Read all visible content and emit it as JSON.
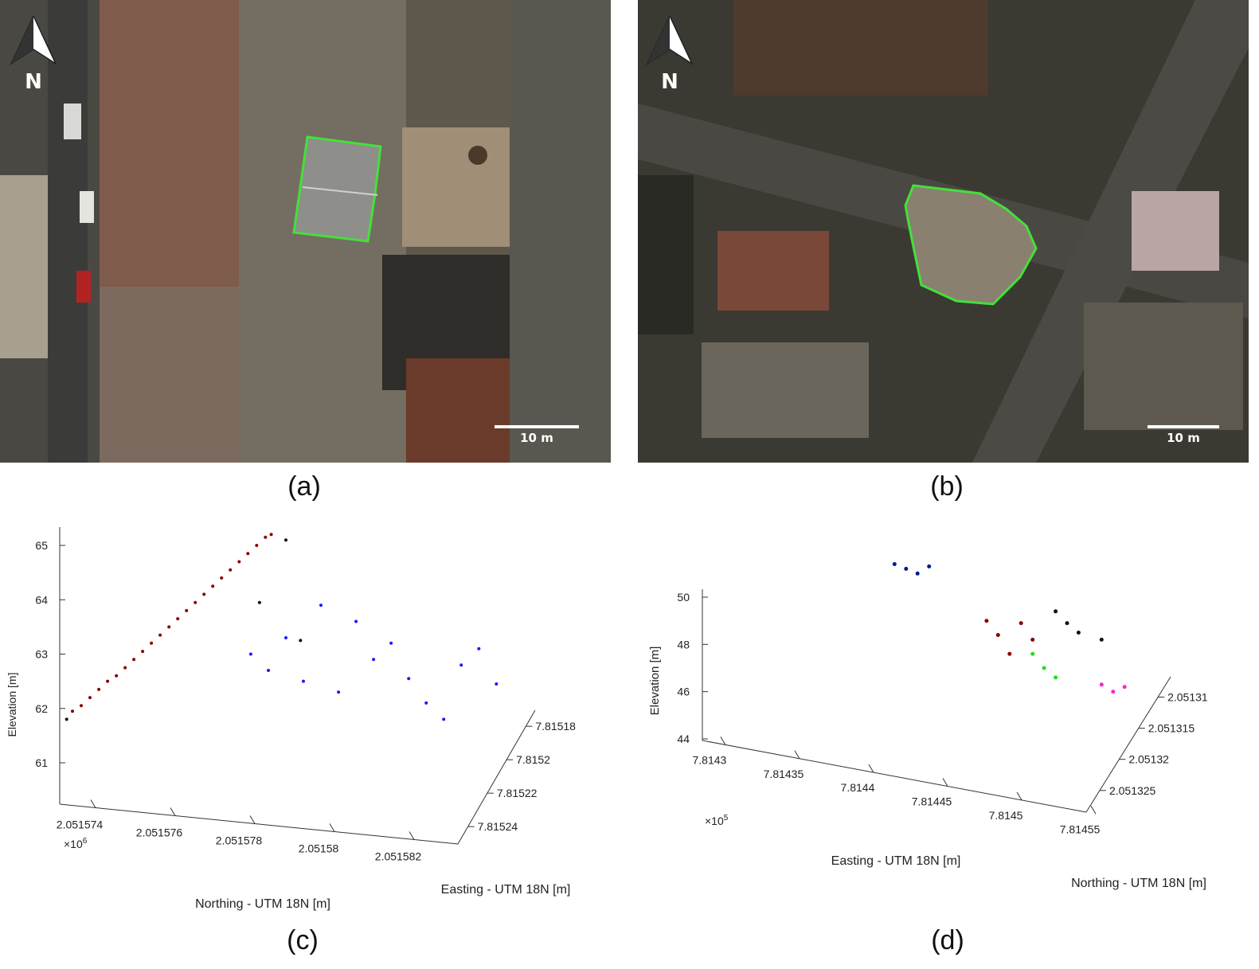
{
  "panels": {
    "a": {
      "caption": "(a)",
      "scale_label": "10 m",
      "north_label": "N"
    },
    "b": {
      "caption": "(b)",
      "scale_label": "10 m",
      "north_label": "N"
    },
    "c": {
      "caption": "(c)"
    },
    "d": {
      "caption": "(d)"
    }
  },
  "colors": {
    "outline": "#44e03a",
    "series_red": "#8b0000",
    "series_blue": "#1a1aff",
    "series_darkblue": "#001a8c",
    "series_green": "#22dd22",
    "series_magenta": "#ff22cc",
    "series_black": "#111111"
  },
  "chart_data": [
    {
      "type": "scatter",
      "panel": "c",
      "zlabel": "Elevation [m]",
      "xlabel": "Northing - UTM 18N [m]",
      "ylabel": "Easting - UTM 18N [m]",
      "z_ticks": [
        "61",
        "62",
        "63",
        "64",
        "65"
      ],
      "x_ticks": [
        "2.051574",
        "2.051576",
        "2.051578",
        "2.05158",
        "2.051582"
      ],
      "x_multiplier": "×10",
      "x_multiplier_exp": "6",
      "y_ticks": [
        "7.81518",
        "7.8152",
        "7.81522",
        "7.81524"
      ],
      "series": [
        {
          "color": "#8b0000",
          "points": [
            [
              2.0515745,
              61.95
            ],
            [
              2.0515748,
              62.05
            ],
            [
              2.0515751,
              62.2
            ],
            [
              2.0515754,
              62.35
            ],
            [
              2.0515757,
              62.5
            ],
            [
              2.051576,
              62.6
            ],
            [
              2.0515763,
              62.75
            ],
            [
              2.0515766,
              62.9
            ],
            [
              2.0515769,
              63.05
            ],
            [
              2.0515772,
              63.2
            ],
            [
              2.0515775,
              63.35
            ],
            [
              2.0515778,
              63.5
            ],
            [
              2.0515781,
              63.65
            ],
            [
              2.0515784,
              63.8
            ],
            [
              2.0515787,
              63.95
            ],
            [
              2.051579,
              64.1
            ],
            [
              2.0515793,
              64.25
            ],
            [
              2.0515796,
              64.4
            ],
            [
              2.0515799,
              64.55
            ],
            [
              2.0515802,
              64.7
            ],
            [
              2.0515805,
              64.85
            ],
            [
              2.0515808,
              65.0
            ],
            [
              2.0515811,
              65.15
            ],
            [
              2.0515813,
              65.2
            ]
          ]
        },
        {
          "color": "#1a1aff",
          "points": [
            [
              2.0515806,
              63.0
            ],
            [
              2.0515812,
              62.7
            ],
            [
              2.0515818,
              63.3
            ],
            [
              2.0515824,
              62.5
            ],
            [
              2.051583,
              63.9
            ],
            [
              2.0515836,
              62.3
            ],
            [
              2.0515842,
              63.6
            ],
            [
              2.0515848,
              62.9
            ],
            [
              2.0515854,
              63.2
            ],
            [
              2.051586,
              62.55
            ],
            [
              2.0515866,
              62.1
            ],
            [
              2.0515872,
              61.8
            ],
            [
              2.0515878,
              62.8
            ],
            [
              2.0515884,
              63.1
            ],
            [
              2.051589,
              62.45
            ]
          ]
        },
        {
          "color": "#111111",
          "points": [
            [
              2.0515743,
              61.8
            ],
            [
              2.0515809,
              63.95
            ],
            [
              2.0515818,
              65.1
            ],
            [
              2.0515823,
              63.25
            ]
          ]
        }
      ]
    },
    {
      "type": "scatter",
      "panel": "d",
      "zlabel": "Elevation [m]",
      "xlabel": "Easting - UTM 18N [m]",
      "ylabel": "Northing - UTM 18N [m]",
      "z_ticks": [
        "44",
        "46",
        "48",
        "50"
      ],
      "x_ticks": [
        "7.8143",
        "7.81435",
        "7.8144",
        "7.81445",
        "7.8145",
        "7.81455"
      ],
      "x_multiplier": "×10",
      "x_multiplier_exp": "5",
      "y_ticks": [
        "2.05131",
        "2.051315",
        "2.05132",
        "2.051325"
      ],
      "series": [
        {
          "color": "#001a8c",
          "points": [
            [
              7.81432,
              51.4
            ],
            [
              7.81433,
              51.2
            ],
            [
              7.81434,
              51.0
            ],
            [
              7.81435,
              51.3
            ]
          ]
        },
        {
          "color": "#8b0000",
          "points": [
            [
              7.8144,
              49.0
            ],
            [
              7.81441,
              48.4
            ],
            [
              7.81442,
              47.6
            ],
            [
              7.81443,
              48.9
            ],
            [
              7.81444,
              48.2
            ]
          ]
        },
        {
          "color": "#111111",
          "points": [
            [
              7.81446,
              49.4
            ],
            [
              7.81447,
              48.9
            ],
            [
              7.81448,
              48.5
            ],
            [
              7.8145,
              48.2
            ]
          ]
        },
        {
          "color": "#22dd22",
          "points": [
            [
              7.81444,
              47.6
            ],
            [
              7.81445,
              47.0
            ],
            [
              7.81446,
              46.6
            ]
          ]
        },
        {
          "color": "#ff22cc",
          "points": [
            [
              7.8145,
              46.3
            ],
            [
              7.81451,
              46.0
            ],
            [
              7.81452,
              46.2
            ]
          ]
        }
      ]
    }
  ]
}
